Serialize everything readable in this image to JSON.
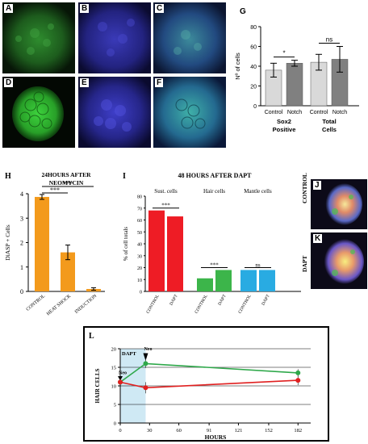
{
  "micrographs": {
    "A": {
      "label": "A"
    },
    "B": {
      "label": "B"
    },
    "C": {
      "label": "C"
    },
    "D": {
      "label": "D"
    },
    "E": {
      "label": "E"
    },
    "F": {
      "label": "F"
    },
    "J": {
      "label": "J",
      "side": "CONTROL"
    },
    "K": {
      "label": "K",
      "side": "DAPT"
    }
  },
  "colors": {
    "control_bar": "#d9d9d9",
    "notch_bar": "#808080",
    "orange": "#f39a1c",
    "red": "#ee1c25",
    "green": "#3cb54a",
    "blue": "#29abe2",
    "line_green": "#2ea84a",
    "line_red": "#e02020",
    "dapt_shade": "#cfe9f4"
  },
  "chart_data": [
    {
      "panel": "G",
      "type": "bar",
      "ylabel": "Nº of cells",
      "ylim": [
        0,
        80
      ],
      "yticks": [
        0,
        20,
        40,
        60,
        80
      ],
      "groups": [
        {
          "name": "Sox2 Positive",
          "name_lines": [
            "Sox2",
            "Positive"
          ],
          "bars": [
            {
              "label": "Control",
              "value": 36,
              "err": 7
            },
            {
              "label": "Notch",
              "value": 43,
              "err": 3
            }
          ],
          "sig": "*"
        },
        {
          "name": "Total Cells",
          "name_lines": [
            "Total",
            "Cells"
          ],
          "bars": [
            {
              "label": "Control",
              "value": 44,
              "err": 8
            },
            {
              "label": "Notch",
              "value": 47,
              "err": 13
            }
          ],
          "sig": "ns"
        }
      ]
    },
    {
      "panel": "H",
      "type": "bar",
      "title_lines": [
        "24HOURS AFTER",
        "NEOMYCIN"
      ],
      "ylabel": "DiASP + Cells",
      "ylim": [
        0,
        4
      ],
      "yticks": [
        0,
        1,
        2,
        3,
        4
      ],
      "categories": [
        "CONTROL",
        "HEAT SHOCK",
        "INDUCTION"
      ],
      "values": [
        3.87,
        1.6,
        0.1
      ],
      "errors": [
        0.1,
        0.3,
        0.05
      ],
      "sig": [
        "***",
        "***"
      ]
    },
    {
      "panel": "I",
      "type": "bar",
      "title": "48 HOURS AFTER DAPT",
      "ylabel": "% of cell totals",
      "ylim": [
        0,
        80
      ],
      "yticks": [
        0,
        10,
        20,
        30,
        40,
        50,
        60,
        70,
        80
      ],
      "groups": [
        {
          "name": "Sust. cells",
          "categories": [
            "CONTROL",
            "DAPT"
          ],
          "values": [
            68,
            63
          ],
          "sig": "***"
        },
        {
          "name": "Hair cells",
          "categories": [
            "CONTROL",
            "DAPT"
          ],
          "values": [
            11,
            18
          ],
          "sig": "***"
        },
        {
          "name": "Mantle cells",
          "categories": [
            "CONTROL",
            "DAPT"
          ],
          "values": [
            18,
            18
          ],
          "sig": "ns"
        }
      ]
    },
    {
      "panel": "L",
      "type": "line",
      "xlabel": "HOURS",
      "ylabel": "HAIR CELLS",
      "xticks": [
        0,
        30,
        60,
        91,
        121,
        152,
        182
      ],
      "yticks": [
        0,
        5,
        10,
        15,
        20
      ],
      "xlim": [
        0,
        195
      ],
      "ylim": [
        0,
        20
      ],
      "annotations": {
        "dapt": "DAPT",
        "neo1": "Neo",
        "neo2": "Neo"
      },
      "series": [
        {
          "color": "green",
          "x": [
            0,
            26,
            182
          ],
          "y": [
            11,
            16,
            13.5
          ],
          "err": [
            0.7,
            1.2,
            1.0
          ]
        },
        {
          "color": "red",
          "x": [
            0,
            26,
            182
          ],
          "y": [
            11,
            9.5,
            11.5
          ],
          "err": [
            0.7,
            1.5,
            1.3
          ]
        }
      ]
    }
  ]
}
